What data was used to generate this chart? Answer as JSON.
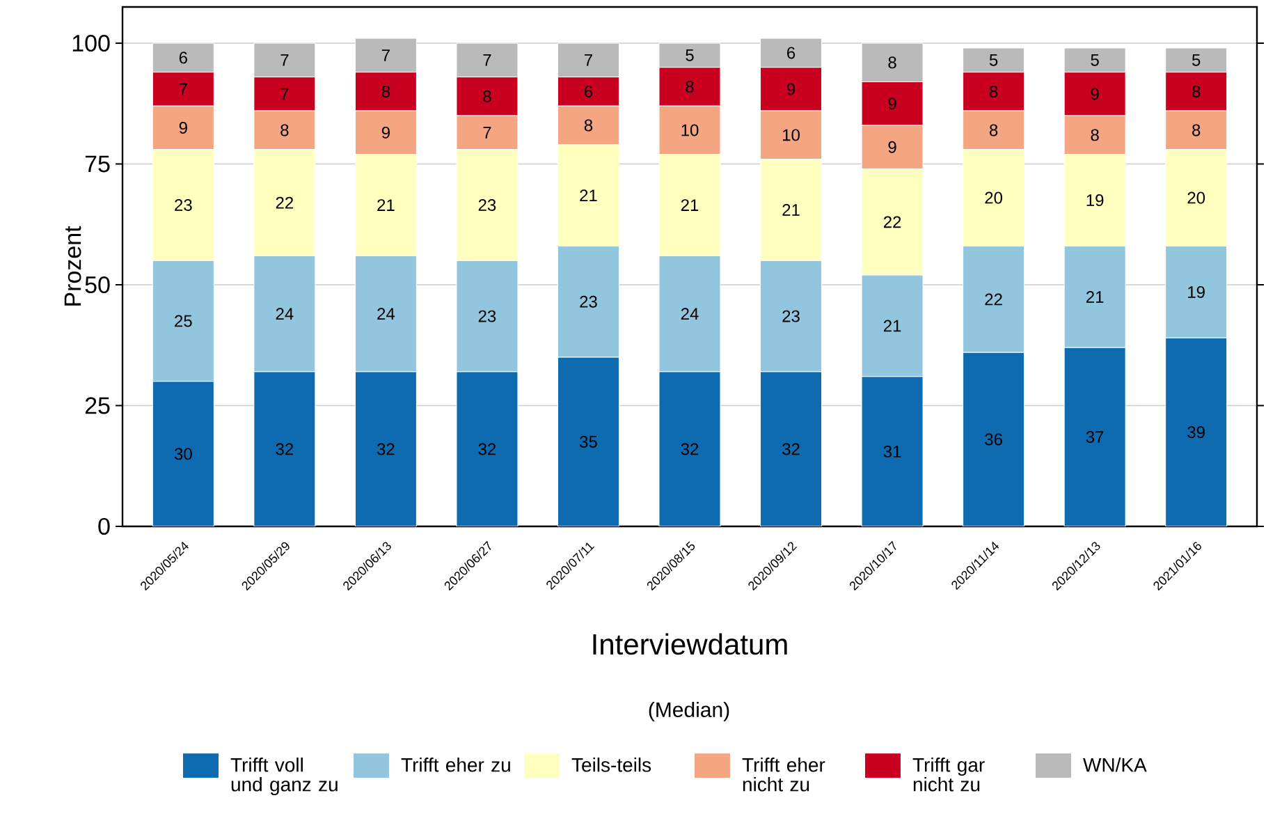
{
  "chart_data": {
    "type": "bar",
    "stacked": true,
    "xlabel": "Interviewdatum",
    "ylabel": "Prozent",
    "annotations": [
      "(Median)"
    ],
    "categories": [
      "2020/05/24",
      "2020/05/29",
      "2020/06/13",
      "2020/06/27",
      "2020/07/11",
      "2020/08/15",
      "2020/09/12",
      "2020/10/17",
      "2020/11/14",
      "2020/12/13",
      "2021/01/16"
    ],
    "series": [
      {
        "name": "Trifft voll und ganz zu",
        "color": "#0e6bb0",
        "values": [
          30,
          32,
          32,
          32,
          35,
          32,
          32,
          31,
          36,
          37,
          39
        ]
      },
      {
        "name": "Trifft eher zu",
        "color": "#92c5de",
        "values": [
          25,
          24,
          24,
          23,
          23,
          24,
          23,
          21,
          22,
          21,
          19
        ]
      },
      {
        "name": "Teils-teils",
        "color": "#ffffbf",
        "values": [
          23,
          22,
          21,
          23,
          21,
          21,
          21,
          22,
          20,
          19,
          20
        ]
      },
      {
        "name": "Trifft eher nicht zu",
        "color": "#f4a582",
        "values": [
          9,
          8,
          9,
          7,
          8,
          10,
          10,
          9,
          8,
          8,
          8
        ]
      },
      {
        "name": "Trifft gar nicht zu",
        "color": "#ca0020",
        "values": [
          7,
          7,
          8,
          8,
          6,
          8,
          9,
          9,
          8,
          9,
          8
        ]
      },
      {
        "name": "WN/KA",
        "color": "#bababa",
        "values": [
          6,
          7,
          7,
          7,
          7,
          5,
          6,
          8,
          5,
          5,
          5
        ]
      }
    ],
    "data_labels": true,
    "ylim": [
      0,
      107.5
    ],
    "yticks": [
      0,
      25,
      50,
      75,
      100
    ],
    "grid": "y",
    "legend": "bottom"
  }
}
